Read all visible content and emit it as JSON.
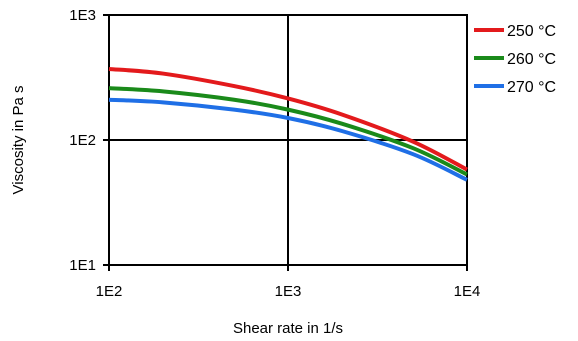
{
  "chart_data": {
    "type": "line",
    "title": "",
    "xlabel": "Shear rate in 1/s",
    "ylabel": "Viscosity in Pa s",
    "x_scale": "log",
    "y_scale": "log",
    "xlim": [
      100,
      10000
    ],
    "ylim": [
      10,
      1000
    ],
    "x_ticks": [
      100,
      1000,
      10000
    ],
    "y_ticks": [
      10,
      100,
      1000
    ],
    "x_tick_labels": [
      "1E2",
      "1E3",
      "1E4"
    ],
    "y_tick_labels": [
      "1E1",
      "1E2",
      "1E3"
    ],
    "grid": true,
    "legend_position": "top-right",
    "series": [
      {
        "name": "250 °C",
        "color": "#e31a1c",
        "x": [
          100,
          200,
          500,
          1000,
          2000,
          5000,
          10000
        ],
        "y": [
          370,
          340,
          270,
          215,
          160,
          97,
          58
        ]
      },
      {
        "name": "260 °C",
        "color": "#1a8a1a",
        "x": [
          100,
          200,
          500,
          1000,
          2000,
          5000,
          10000
        ],
        "y": [
          260,
          245,
          210,
          175,
          135,
          86,
          53
        ]
      },
      {
        "name": "270 °C",
        "color": "#1f6fe6",
        "x": [
          100,
          200,
          500,
          1000,
          2000,
          5000,
          10000
        ],
        "y": [
          210,
          200,
          175,
          150,
          118,
          77,
          48
        ]
      }
    ]
  }
}
